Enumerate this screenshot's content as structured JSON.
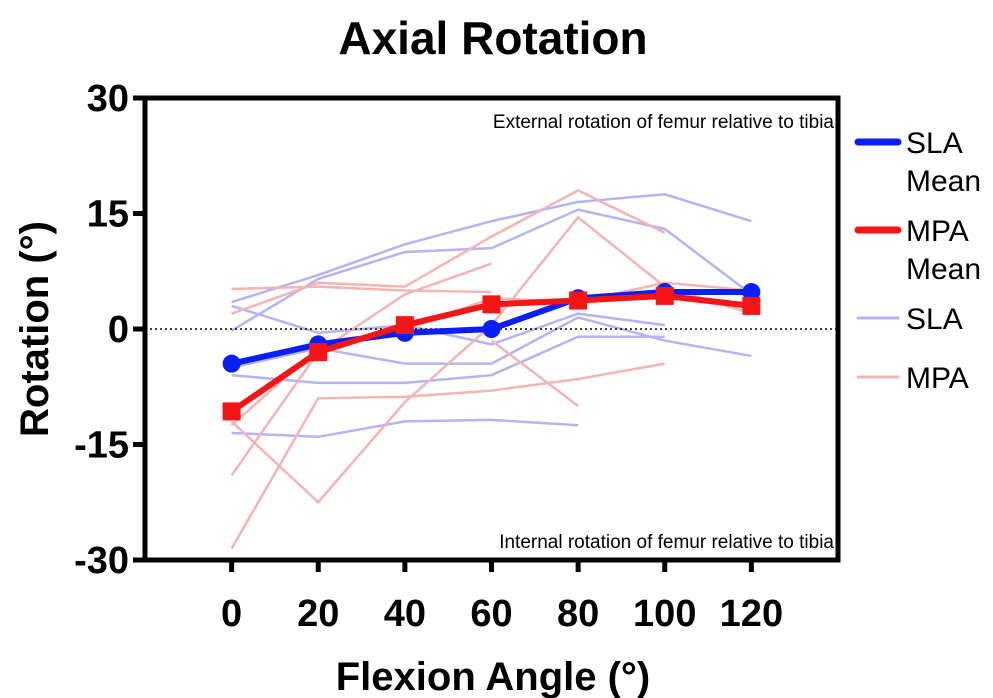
{
  "chart_data": {
    "type": "line",
    "title": "Axial Rotation",
    "xlabel": "Flexion Angle (°)",
    "ylabel": "Rotation (°)",
    "x": [
      0,
      20,
      40,
      60,
      80,
      100,
      120
    ],
    "x_tick_labels": [
      "0",
      "20",
      "40",
      "60",
      "80",
      "100",
      "120"
    ],
    "xlim": [
      -20,
      140
    ],
    "y_ticks": [
      30,
      15,
      0,
      -15,
      -30
    ],
    "y_tick_labels": [
      "30",
      "15",
      "0",
      "-15",
      "-30"
    ],
    "ylim": [
      -30,
      30
    ],
    "grid": false,
    "legend_position": "right",
    "annotations": {
      "top": "External rotation of femur relative to tibia",
      "bottom": "Internal rotation of femur relative to tibia"
    },
    "legend": [
      {
        "label": "SLA Mean",
        "lines": [
          "SLA",
          "Mean"
        ],
        "color": "#0a1ff5",
        "style": "mean"
      },
      {
        "label": "MPA Mean",
        "lines": [
          "MPA",
          "Mean"
        ],
        "color": "#f51515",
        "style": "mean"
      },
      {
        "label": "SLA",
        "lines": [
          "SLA"
        ],
        "color": "#b4b4f5",
        "style": "individual"
      },
      {
        "label": "MPA",
        "lines": [
          "MPA"
        ],
        "color": "#f5b4b4",
        "style": "individual"
      }
    ],
    "mean_series": [
      {
        "name": "SLA Mean",
        "color": "#0a1ff5",
        "marker": "circle",
        "values": [
          -4.5,
          -2.0,
          -0.5,
          0.0,
          4.0,
          4.8,
          4.8
        ]
      },
      {
        "name": "MPA Mean",
        "color": "#f51515",
        "marker": "square",
        "values": [
          -10.7,
          -3.0,
          0.5,
          3.2,
          3.7,
          4.3,
          3.0
        ]
      }
    ],
    "individual_series": [
      {
        "group": "SLA",
        "color": "#b4b4f5",
        "values": [
          3.5,
          7.0,
          11.0,
          14.0,
          16.5,
          17.5,
          14.0
        ]
      },
      {
        "group": "SLA",
        "color": "#b4b4f5",
        "values": [
          -0.2,
          6.5,
          10.0,
          10.5,
          15.5,
          13.0,
          4.5
        ]
      },
      {
        "group": "SLA",
        "color": "#b4b4f5",
        "values": [
          3.0,
          -0.5,
          0.5,
          -2.0,
          2.0,
          0.5,
          null
        ]
      },
      {
        "group": "SLA",
        "color": "#b4b4f5",
        "values": [
          -5.0,
          -2.5,
          -4.5,
          -4.5,
          1.5,
          -1.5,
          -3.5
        ]
      },
      {
        "group": "SLA",
        "color": "#b4b4f5",
        "values": [
          -6.0,
          -7.0,
          -7.0,
          -6.0,
          -1.0,
          -1.0,
          null
        ]
      },
      {
        "group": "SLA",
        "color": "#b4b4f5",
        "values": [
          -13.5,
          -14.0,
          -12.0,
          -11.8,
          -12.5,
          null,
          null
        ]
      },
      {
        "group": "MPA",
        "color": "#f5b4b4",
        "values": [
          5.2,
          5.5,
          5.0,
          4.8,
          null,
          null,
          null
        ]
      },
      {
        "group": "MPA",
        "color": "#f5b4b4",
        "values": [
          2.0,
          6.0,
          5.5,
          12.0,
          18.0,
          12.5,
          null
        ]
      },
      {
        "group": "MPA",
        "color": "#f5b4b4",
        "values": [
          -19.0,
          -3.0,
          4.5,
          8.5,
          null,
          null,
          null
        ]
      },
      {
        "group": "MPA",
        "color": "#f5b4b4",
        "values": [
          -12.0,
          -22.5,
          -9.5,
          0.5,
          14.5,
          5.5,
          2.0
        ]
      },
      {
        "group": "MPA",
        "color": "#f5b4b4",
        "values": [
          -28.5,
          -9.0,
          -8.8,
          -8.0,
          -6.5,
          -4.5,
          null
        ]
      },
      {
        "group": "MPA",
        "color": "#f5b4b4",
        "values": [
          -12.5,
          -2.5,
          0.0,
          4.0,
          3.5,
          6.0,
          5.0
        ]
      },
      {
        "group": "MPA",
        "color": "#f5b4b4",
        "values": [
          null,
          null,
          null,
          -1.5,
          -10.0,
          null,
          null
        ]
      }
    ]
  }
}
